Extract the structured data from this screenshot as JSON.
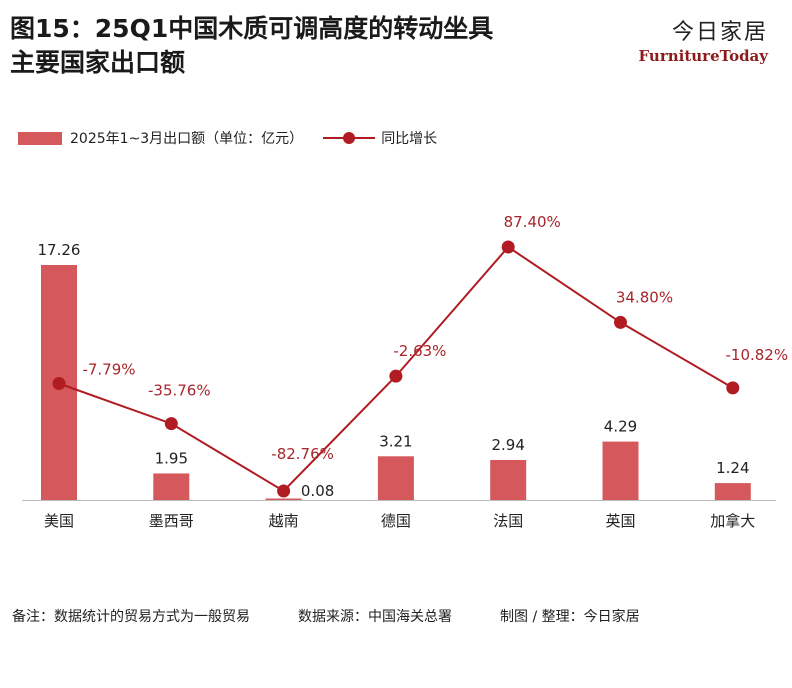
{
  "title_line1": "图15：25Q1中国木质可调高度的转动坐具",
  "title_line2": "主要国家出口额",
  "brand": {
    "cn": "今日家居",
    "en": "FurnitureToday"
  },
  "legend": {
    "bar_label": "2025年1~3月出口额（单位：亿元）",
    "line_label": "同比增长"
  },
  "footer": {
    "note": "备注：数据统计的贸易方式为一般贸易",
    "source": "数据来源：中国海关总署",
    "credit": "制图 / 整理：今日家居"
  },
  "colors": {
    "bar": "#d4585c",
    "line": "#b01c22",
    "growth_label": "#a8262b"
  },
  "chart_data": {
    "type": "bar",
    "categories": [
      "美国",
      "墨西哥",
      "越南",
      "德国",
      "法国",
      "英国",
      "加拿大"
    ],
    "series": [
      {
        "name": "2025年1~3月出口额（单位：亿元）",
        "type": "bar",
        "values": [
          17.26,
          1.95,
          0.08,
          3.21,
          2.94,
          4.29,
          1.24
        ],
        "labels": [
          "17.26",
          "1.95",
          "0.08",
          "3.21",
          "2.94",
          "4.29",
          "1.24"
        ]
      },
      {
        "name": "同比增长",
        "type": "line",
        "values": [
          -7.79,
          -35.76,
          -82.76,
          -2.63,
          87.4,
          34.8,
          -10.82
        ],
        "labels": [
          "-7.79%",
          "-35.76%",
          "-82.76%",
          "-2.63%",
          "87.40%",
          "34.80%",
          "-10.82%"
        ]
      }
    ],
    "legend_position": "top-left",
    "grid": false
  }
}
